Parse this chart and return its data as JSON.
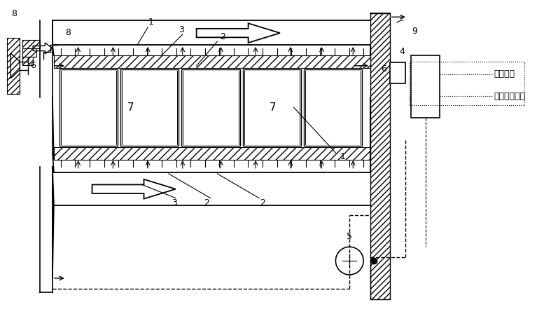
{
  "bg_color": "#ffffff",
  "line_color": "#000000",
  "fig_width": 7.67,
  "fig_height": 4.48,
  "legend_text1": "储能系统",
  "legend_text2": "温差发电电源"
}
